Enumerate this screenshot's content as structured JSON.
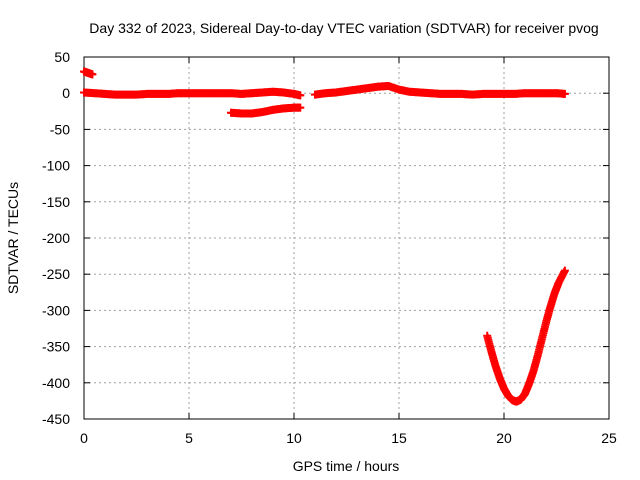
{
  "chart_data": {
    "type": "scatter",
    "title": "Day 332 of 2023, Sidereal Day-to-day VTEC variation (SDTVAR) for receiver pvog",
    "xlabel": "GPS time / hours",
    "ylabel": "SDTVAR / TECUs",
    "xlim": [
      0,
      25
    ],
    "ylim": [
      -450,
      50
    ],
    "xticks": [
      0,
      5,
      10,
      15,
      20,
      25
    ],
    "yticks": [
      50,
      0,
      -50,
      -100,
      -150,
      -200,
      -250,
      -300,
      -350,
      -400,
      -450
    ],
    "xtick_labels": [
      "0",
      "5",
      "10",
      "15",
      "20",
      "25"
    ],
    "ytick_labels": [
      "50",
      "0",
      "-50",
      "-100",
      "-150",
      "-200",
      "-250",
      "-300",
      "-350",
      "-400",
      "-450"
    ],
    "grid": true,
    "legend": "none",
    "marker_color": "#ff0000",
    "series": [
      {
        "values": [
          {
            "x": 0.0,
            "y": 30
          },
          {
            "x": 0.2,
            "y": 28
          },
          {
            "x": 0.4,
            "y": 26
          }
        ]
      },
      {
        "values": [
          {
            "x": 0.0,
            "y": 1
          },
          {
            "x": 0.5,
            "y": 0
          },
          {
            "x": 1.0,
            "y": -1
          },
          {
            "x": 1.5,
            "y": -2
          },
          {
            "x": 2.0,
            "y": -2
          },
          {
            "x": 2.5,
            "y": -2
          },
          {
            "x": 3.0,
            "y": -1
          },
          {
            "x": 3.5,
            "y": -1
          },
          {
            "x": 4.0,
            "y": -1
          },
          {
            "x": 4.5,
            "y": 0
          },
          {
            "x": 5.0,
            "y": 0
          },
          {
            "x": 5.5,
            "y": 0
          },
          {
            "x": 6.0,
            "y": 0
          },
          {
            "x": 6.5,
            "y": 0
          },
          {
            "x": 7.0,
            "y": 0
          },
          {
            "x": 7.5,
            "y": -1
          },
          {
            "x": 8.0,
            "y": 0
          },
          {
            "x": 8.5,
            "y": 1
          },
          {
            "x": 9.0,
            "y": 2
          },
          {
            "x": 9.5,
            "y": 1
          },
          {
            "x": 10.0,
            "y": -1
          },
          {
            "x": 10.3,
            "y": -3
          }
        ]
      },
      {
        "values": [
          {
            "x": 7.0,
            "y": -27
          },
          {
            "x": 7.5,
            "y": -28
          },
          {
            "x": 8.0,
            "y": -28
          },
          {
            "x": 8.5,
            "y": -26
          },
          {
            "x": 9.0,
            "y": -23
          },
          {
            "x": 9.5,
            "y": -21
          },
          {
            "x": 10.0,
            "y": -20
          },
          {
            "x": 10.3,
            "y": -20
          }
        ]
      },
      {
        "values": [
          {
            "x": 11.0,
            "y": -2
          },
          {
            "x": 11.5,
            "y": 0
          },
          {
            "x": 12.0,
            "y": 1
          },
          {
            "x": 12.5,
            "y": 3
          },
          {
            "x": 13.0,
            "y": 5
          },
          {
            "x": 13.5,
            "y": 7
          },
          {
            "x": 14.0,
            "y": 9
          },
          {
            "x": 14.5,
            "y": 10
          },
          {
            "x": 15.0,
            "y": 5
          },
          {
            "x": 15.5,
            "y": 2
          },
          {
            "x": 16.0,
            "y": 1
          },
          {
            "x": 16.5,
            "y": 0
          },
          {
            "x": 17.0,
            "y": -1
          },
          {
            "x": 17.5,
            "y": -1
          },
          {
            "x": 18.0,
            "y": -1
          },
          {
            "x": 18.5,
            "y": -2
          },
          {
            "x": 19.0,
            "y": -1
          },
          {
            "x": 19.5,
            "y": -1
          },
          {
            "x": 20.0,
            "y": -1
          },
          {
            "x": 20.5,
            "y": -1
          },
          {
            "x": 21.0,
            "y": 0
          },
          {
            "x": 21.5,
            "y": 0
          },
          {
            "x": 22.0,
            "y": 0
          },
          {
            "x": 22.5,
            "y": 0
          },
          {
            "x": 22.9,
            "y": -1
          }
        ]
      },
      {
        "values": [
          {
            "x": 19.2,
            "y": -335
          },
          {
            "x": 19.4,
            "y": -357
          },
          {
            "x": 19.6,
            "y": -377
          },
          {
            "x": 19.8,
            "y": -394
          },
          {
            "x": 20.0,
            "y": -408
          },
          {
            "x": 20.2,
            "y": -418
          },
          {
            "x": 20.4,
            "y": -424
          },
          {
            "x": 20.6,
            "y": -426
          },
          {
            "x": 20.8,
            "y": -423
          },
          {
            "x": 21.0,
            "y": -415
          },
          {
            "x": 21.2,
            "y": -401
          },
          {
            "x": 21.4,
            "y": -384
          },
          {
            "x": 21.6,
            "y": -363
          },
          {
            "x": 21.8,
            "y": -340
          },
          {
            "x": 22.0,
            "y": -317
          },
          {
            "x": 22.2,
            "y": -296
          },
          {
            "x": 22.4,
            "y": -277
          },
          {
            "x": 22.6,
            "y": -262
          },
          {
            "x": 22.9,
            "y": -245
          }
        ]
      }
    ]
  }
}
